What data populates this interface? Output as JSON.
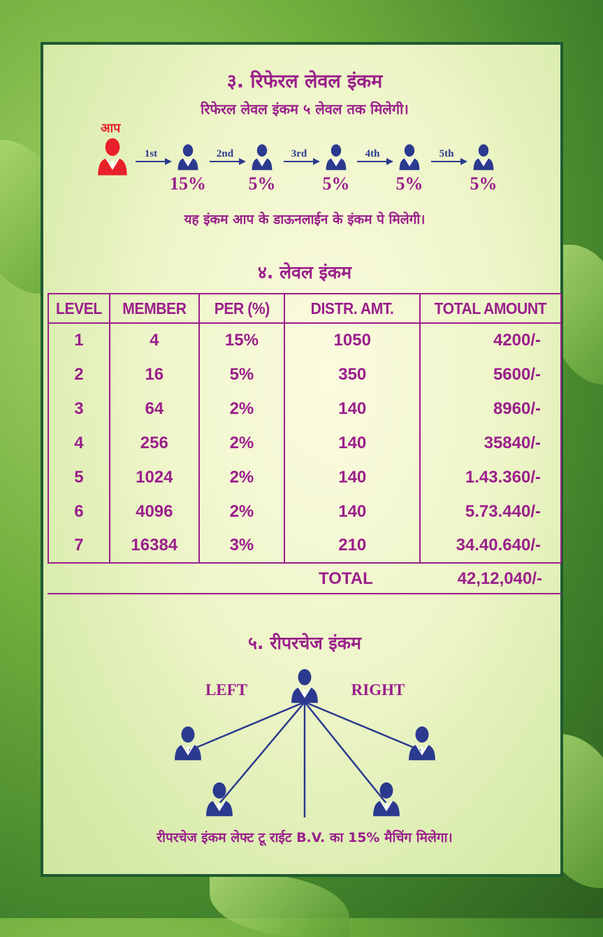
{
  "colors": {
    "accent": "#9a1f8b",
    "person": "#2b3a8f",
    "you": "#e8202a",
    "frame": "#1f5a30"
  },
  "referral": {
    "title": "३. रिफेरल लेवल इंकम",
    "subtitle": "रिफेरल लेवल इंकम ५ लेवल तक मिलेगी।",
    "you_label": "आप",
    "steps": [
      {
        "label": "1st",
        "percent": "15%"
      },
      {
        "label": "2nd",
        "percent": "5%"
      },
      {
        "label": "3rd",
        "percent": "5%"
      },
      {
        "label": "4th",
        "percent": "5%"
      },
      {
        "label": "5th",
        "percent": "5%"
      }
    ],
    "note": "यह इंकम आप के डाऊनलाईन के इंकम पे मिलेगी।"
  },
  "level_income": {
    "title": "४. लेवल इंकम",
    "headers": [
      "LEVEL",
      "MEMBER",
      "PER (%)",
      "DISTR. AMT.",
      "TOTAL AMOUNT"
    ],
    "rows": [
      [
        "1",
        "4",
        "15%",
        "1050",
        "4200/-"
      ],
      [
        "2",
        "16",
        "5%",
        "350",
        "5600/-"
      ],
      [
        "3",
        "64",
        "2%",
        "140",
        "8960/-"
      ],
      [
        "4",
        "256",
        "2%",
        "140",
        "35840/-"
      ],
      [
        "5",
        "1024",
        "2%",
        "140",
        "1.43.360/-"
      ],
      [
        "6",
        "4096",
        "2%",
        "140",
        "5.73.440/-"
      ],
      [
        "7",
        "16384",
        "3%",
        "210",
        "34.40.640/-"
      ]
    ],
    "total_label": "TOTAL",
    "total_value": "42,12,040/-"
  },
  "repurchase": {
    "title": "५. रीपरचेज इंकम",
    "left": "LEFT",
    "right": "RIGHT",
    "note": "रीपरचेज इंकम लेफ्ट टू राईट B.V. का 15% मैचिंग मिलेगा।"
  }
}
